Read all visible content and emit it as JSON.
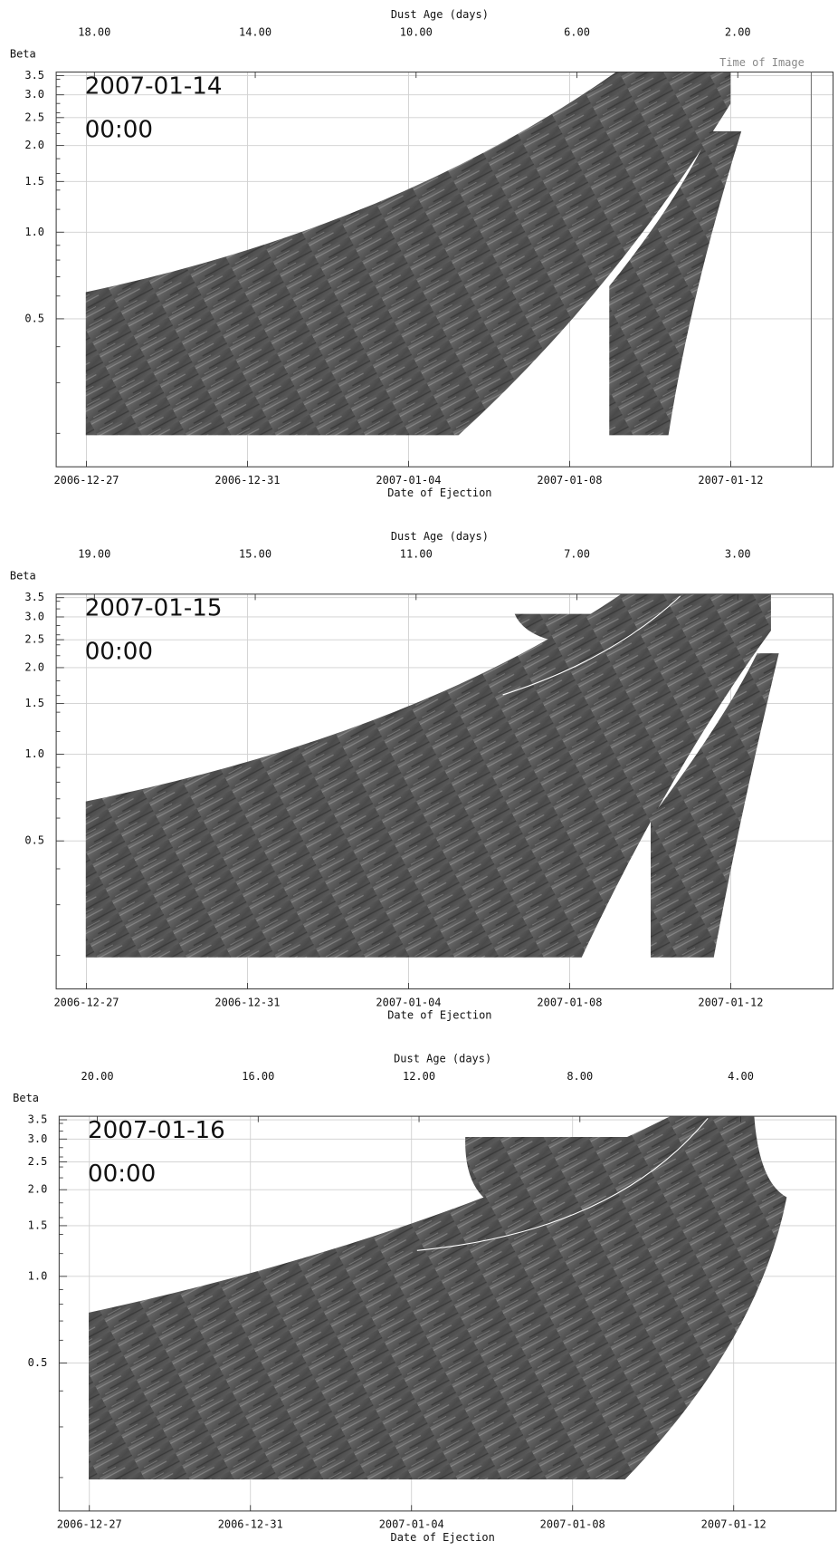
{
  "chart_data": [
    {
      "type": "image",
      "annotation": [
        "2007-01-14",
        "00:00"
      ],
      "ylabel": "Beta",
      "xlabel": "Date of Ejection",
      "x2label": "Dust Age (days)",
      "time_of_image": "2007-01-14",
      "time_of_image_label": "Time of Image",
      "xlim": [
        "2006-12-26T06:00",
        "2007-01-14T13:00"
      ],
      "xticks": [
        "2006-12-27",
        "2006-12-31",
        "2007-01-04",
        "2007-01-08",
        "2007-01-12"
      ],
      "x2lim": [
        18.95,
        -0.37
      ],
      "x2ticks": [
        {
          "value": 18,
          "label": "18.00"
        },
        {
          "value": 14,
          "label": "14.00"
        },
        {
          "value": 10,
          "label": "10.00"
        },
        {
          "value": 6,
          "label": "6.00"
        },
        {
          "value": 2,
          "label": "2.00"
        }
      ],
      "ylim": [
        0.153,
        3.6
      ],
      "ylog": true,
      "yticks": [
        0.5,
        {
          "value": 1,
          "label": "1.0"
        },
        1.5,
        {
          "value": 2,
          "label": "2.0"
        },
        2.5,
        {
          "value": 3,
          "label": "3.0"
        },
        3.5
      ],
      "yminor": [
        0.2,
        0.3,
        0.4,
        0.6,
        0.7,
        0.8,
        0.9,
        1.2,
        1.4,
        1.6,
        1.8,
        2.2,
        2.4,
        2.6,
        2.8,
        3.2,
        3.4
      ],
      "grid": true
    },
    {
      "type": "image",
      "annotation": [
        "2007-01-15",
        "00:00"
      ],
      "ylabel": "Beta",
      "xlabel": "Date of Ejection",
      "x2label": "Dust Age (days)",
      "xlim": [
        "2006-12-26T06:00",
        "2007-01-14T13:00"
      ],
      "xticks": [
        "2006-12-27",
        "2006-12-31",
        "2007-01-04",
        "2007-01-08",
        "2007-01-12"
      ],
      "x2lim": [
        19.95,
        0.63
      ],
      "x2ticks": [
        {
          "value": 19,
          "label": "19.00"
        },
        {
          "value": 15,
          "label": "15.00"
        },
        {
          "value": 11,
          "label": "11.00"
        },
        {
          "value": 7,
          "label": "7.00"
        },
        {
          "value": 3,
          "label": "3.00"
        }
      ],
      "ylim": [
        0.153,
        3.6
      ],
      "ylog": true,
      "yticks": [
        0.5,
        {
          "value": 1,
          "label": "1.0"
        },
        1.5,
        {
          "value": 2,
          "label": "2.0"
        },
        2.5,
        {
          "value": 3,
          "label": "3.0"
        },
        3.5
      ],
      "yminor": [
        0.2,
        0.3,
        0.4,
        0.6,
        0.7,
        0.8,
        0.9,
        1.2,
        1.4,
        1.6,
        1.8,
        2.2,
        2.4,
        2.6,
        2.8,
        3.2,
        3.4
      ],
      "grid": true
    },
    {
      "type": "image",
      "annotation": [
        "2007-01-16",
        "00:00"
      ],
      "ylabel": "Beta",
      "xlabel": "Date of Ejection",
      "x2label": "Dust Age (days)",
      "xlim": [
        "2006-12-26T06:00",
        "2007-01-14T13:00"
      ],
      "xticks": [
        "2006-12-27",
        "2006-12-31",
        "2007-01-04",
        "2007-01-08",
        "2007-01-12"
      ],
      "x2lim": [
        20.95,
        1.63
      ],
      "x2ticks": [
        {
          "value": 20,
          "label": "20.00"
        },
        {
          "value": 16,
          "label": "16.00"
        },
        {
          "value": 12,
          "label": "12.00"
        },
        {
          "value": 8,
          "label": "8.00"
        },
        {
          "value": 4,
          "label": "4.00"
        }
      ],
      "ylim": [
        0.153,
        3.6
      ],
      "ylog": true,
      "yticks": [
        0.5,
        {
          "value": 1,
          "label": "1.0"
        },
        1.5,
        {
          "value": 2,
          "label": "2.0"
        },
        2.5,
        {
          "value": 3,
          "label": "3.0"
        },
        3.5
      ],
      "yminor": [
        0.2,
        0.3,
        0.4,
        0.6,
        0.7,
        0.8,
        0.9,
        1.2,
        1.4,
        1.6,
        1.8,
        2.2,
        2.4,
        2.6,
        2.8,
        3.2,
        3.4
      ],
      "grid": true
    }
  ]
}
